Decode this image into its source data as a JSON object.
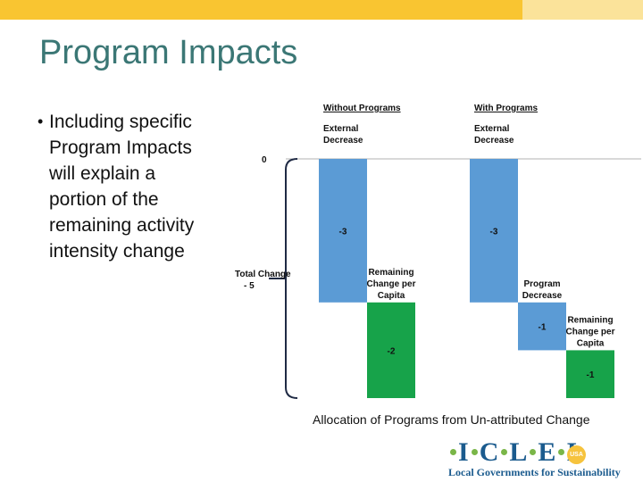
{
  "slide": {
    "title": "Program Impacts",
    "bullet": "Including specific Program Impacts will explain a portion of the remaining activity intensity change",
    "caption": "Allocation of Programs from Un-attributed Change"
  },
  "colors": {
    "blue": "#5b9bd5",
    "green": "#17a34a",
    "title": "#3b7775",
    "bar": "#f9c531"
  },
  "logo": {
    "name_parts": [
      "I",
      "C",
      "L",
      "E",
      "I"
    ],
    "badge": "USA",
    "tagline": "Local Governments for Sustainability"
  },
  "chart_data": {
    "type": "waterfall",
    "zero_label": "0",
    "total_label_lines": [
      "Total Change",
      "- 5"
    ],
    "panels": [
      {
        "title": "Without Programs",
        "steps": [
          {
            "label_lines": [
              "External",
              "Decrease"
            ],
            "value": -3,
            "value_label": "-3",
            "color": "#5b9bd5"
          },
          {
            "label_lines": [
              "Remaining",
              "Change per",
              "Capita"
            ],
            "value": -2,
            "value_label": "-2",
            "color": "#17a34a"
          }
        ]
      },
      {
        "title": "With Programs",
        "steps": [
          {
            "label_lines": [
              "External",
              "Decrease"
            ],
            "value": -3,
            "value_label": "-3",
            "color": "#5b9bd5"
          },
          {
            "label_lines": [
              "Program",
              "Decrease"
            ],
            "value": -1,
            "value_label": "-1",
            "color": "#5b9bd5"
          },
          {
            "label_lines": [
              "Remaining",
              "Change per",
              "Capita"
            ],
            "value": -1,
            "value_label": "-1",
            "color": "#17a34a"
          }
        ]
      }
    ]
  }
}
